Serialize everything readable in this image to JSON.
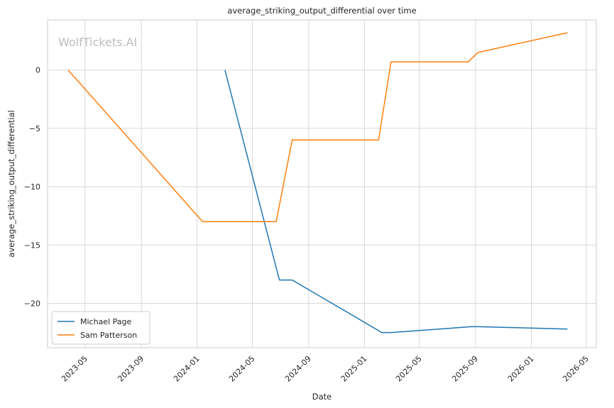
{
  "chart_data": {
    "type": "line",
    "title": "average_striking_output_differential over time",
    "xlabel": "Date",
    "ylabel": "average_striking_output_differential",
    "watermark": "WolfTickets.AI",
    "xlim": [
      "2023-02-08",
      "2026-05-23"
    ],
    "ylim": [
      -23.8,
      4.3
    ],
    "x_ticks": [
      "2023-05",
      "2023-09",
      "2024-01",
      "2024-05",
      "2024-09",
      "2025-01",
      "2025-05",
      "2025-09",
      "2026-01",
      "2026-05"
    ],
    "y_ticks": [
      0,
      -5,
      -10,
      -15,
      -20
    ],
    "y_tick_labels": [
      "0",
      "−5",
      "−10",
      "−15",
      "−20"
    ],
    "grid": true,
    "legend_position": "lower-left",
    "series": [
      {
        "name": "Michael Page",
        "color": "#1f77b4",
        "points": [
          {
            "x": "2024-03-02",
            "y": 0.0
          },
          {
            "x": "2024-06-29",
            "y": -18.0
          },
          {
            "x": "2024-07-27",
            "y": -18.0
          },
          {
            "x": "2025-02-08",
            "y": -22.5
          },
          {
            "x": "2025-03-01",
            "y": -22.5
          },
          {
            "x": "2025-08-23",
            "y": -22.0
          },
          {
            "x": "2025-09-06",
            "y": -22.0
          },
          {
            "x": "2026-03-21",
            "y": -22.2
          }
        ]
      },
      {
        "name": "Sam Patterson",
        "color": "#ff7f0e",
        "points": [
          {
            "x": "2023-03-25",
            "y": 0.0
          },
          {
            "x": "2024-01-13",
            "y": -13.0
          },
          {
            "x": "2024-06-22",
            "y": -13.0
          },
          {
            "x": "2024-07-27",
            "y": -6.0
          },
          {
            "x": "2025-02-01",
            "y": -6.0
          },
          {
            "x": "2025-02-28",
            "y": 0.7
          },
          {
            "x": "2025-08-16",
            "y": 0.7
          },
          {
            "x": "2025-09-06",
            "y": 1.5
          },
          {
            "x": "2026-03-21",
            "y": 3.2
          }
        ]
      }
    ]
  }
}
